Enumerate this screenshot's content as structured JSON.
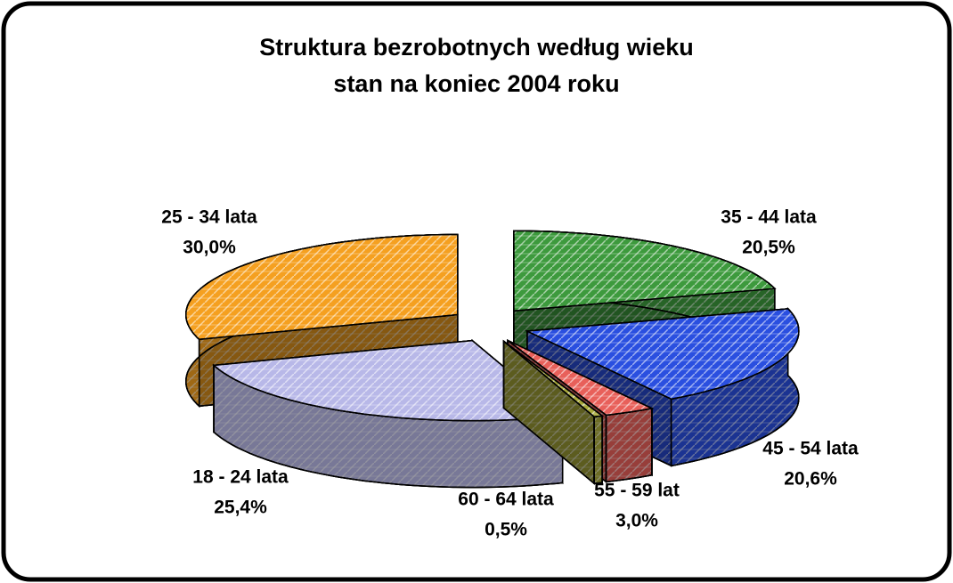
{
  "chart_data": {
    "type": "pie3d",
    "title": [
      "Struktura bezrobotnych według wieku",
      "stan na koniec 2004 roku"
    ],
    "categories": [
      "35 - 44 lata",
      "45 - 54 lata",
      "55 - 59 lat",
      "60 - 64 lata",
      "18 - 24 lata",
      "25 - 34 lata"
    ],
    "values": [
      20.5,
      20.6,
      3.0,
      0.5,
      25.4,
      30.0
    ],
    "value_labels": [
      "20,5%",
      "20,6%",
      "3,0%",
      "0,5%",
      "25,4%",
      "30,0%"
    ],
    "colors": [
      "#3d9a3d",
      "#2a4fe0",
      "#e8605a",
      "#a8a83a",
      "#b8b8e8",
      "#f5a020"
    ]
  }
}
